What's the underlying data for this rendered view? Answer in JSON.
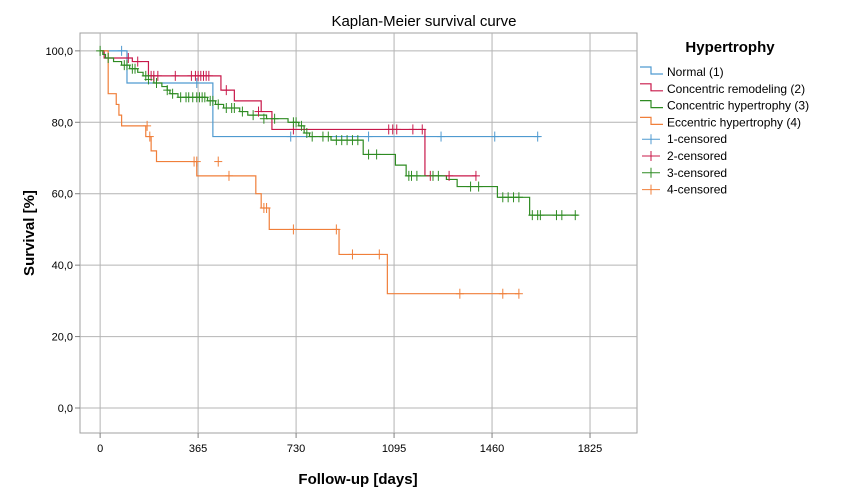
{
  "chart_data": {
    "type": "line",
    "title": "Kaplan-Meier survival curve",
    "xlabel": "Follow-up [days]",
    "ylabel": "Survival [%]",
    "xlim": [
      -75,
      2000
    ],
    "ylim": [
      -7,
      105
    ],
    "xticks": [
      0,
      365,
      730,
      1095,
      1460,
      1825
    ],
    "xtick_labels": [
      "0",
      "365",
      "730",
      "1095",
      "1460",
      "1825"
    ],
    "yticks": [
      0,
      20,
      40,
      60,
      80,
      100
    ],
    "ytick_labels": [
      "0,0",
      "20,0",
      "40,0",
      "60,0",
      "80,0",
      "100,0"
    ],
    "grid": true,
    "legend": {
      "title": "Hypertrophy",
      "placement": "right",
      "entries": [
        {
          "label": "Normal (1)",
          "kind": "line",
          "color": "#4f9ad0"
        },
        {
          "label": "Concentric remodeling (2)",
          "kind": "line",
          "color": "#c8184a"
        },
        {
          "label": "Concentric hypertrophy (3)",
          "kind": "line",
          "color": "#2e8b22"
        },
        {
          "label": "Eccentric hypertrophy (4)",
          "kind": "line",
          "color": "#f07f3a"
        },
        {
          "label": "1-censored",
          "kind": "marker",
          "color": "#4f9ad0"
        },
        {
          "label": "2-censored",
          "kind": "marker",
          "color": "#c8184a"
        },
        {
          "label": "3-censored",
          "kind": "marker",
          "color": "#2e8b22"
        },
        {
          "label": "4-censored",
          "kind": "marker",
          "color": "#f07f3a"
        }
      ]
    },
    "series": [
      {
        "name": "Normal (1)",
        "color": "#4f9ad0",
        "steps": [
          [
            0,
            100
          ],
          [
            100,
            91
          ],
          [
            420,
            76
          ],
          [
            1640,
            76
          ]
        ],
        "censored": [
          [
            80,
            100
          ],
          [
            360,
            91
          ],
          [
            710,
            76
          ],
          [
            1000,
            76
          ],
          [
            1270,
            76
          ],
          [
            1470,
            76
          ],
          [
            1630,
            76
          ]
        ]
      },
      {
        "name": "Concentric remodeling (2)",
        "color": "#c8184a",
        "steps": [
          [
            0,
            100
          ],
          [
            15,
            98
          ],
          [
            120,
            97
          ],
          [
            180,
            93
          ],
          [
            450,
            89
          ],
          [
            500,
            86
          ],
          [
            600,
            83
          ],
          [
            640,
            78
          ],
          [
            1210,
            65
          ],
          [
            1400,
            65
          ]
        ],
        "censored": [
          [
            105,
            98
          ],
          [
            140,
            97
          ],
          [
            190,
            93
          ],
          [
            200,
            93
          ],
          [
            215,
            93
          ],
          [
            280,
            93
          ],
          [
            340,
            93
          ],
          [
            355,
            93
          ],
          [
            365,
            93
          ],
          [
            375,
            93
          ],
          [
            385,
            93
          ],
          [
            395,
            93
          ],
          [
            405,
            93
          ],
          [
            470,
            89
          ],
          [
            590,
            83
          ],
          [
            720,
            78
          ],
          [
            1075,
            78
          ],
          [
            1090,
            78
          ],
          [
            1105,
            78
          ],
          [
            1165,
            78
          ],
          [
            1200,
            78
          ],
          [
            1230,
            65
          ],
          [
            1300,
            65
          ],
          [
            1400,
            65
          ]
        ]
      },
      {
        "name": "Concentric hypertrophy (3)",
        "color": "#2e8b22",
        "steps": [
          [
            0,
            100
          ],
          [
            10,
            99
          ],
          [
            20,
            98
          ],
          [
            50,
            97
          ],
          [
            80,
            96
          ],
          [
            110,
            95
          ],
          [
            140,
            94
          ],
          [
            160,
            93
          ],
          [
            200,
            91
          ],
          [
            230,
            90
          ],
          [
            250,
            89
          ],
          [
            260,
            88
          ],
          [
            290,
            87
          ],
          [
            400,
            86
          ],
          [
            430,
            85
          ],
          [
            460,
            84
          ],
          [
            520,
            83
          ],
          [
            550,
            82
          ],
          [
            620,
            81
          ],
          [
            700,
            80
          ],
          [
            740,
            79
          ],
          [
            760,
            77
          ],
          [
            780,
            76
          ],
          [
            860,
            75
          ],
          [
            980,
            71
          ],
          [
            1100,
            68
          ],
          [
            1140,
            65
          ],
          [
            1290,
            64
          ],
          [
            1330,
            62
          ],
          [
            1480,
            59
          ],
          [
            1600,
            54
          ],
          [
            1780,
            54
          ]
        ],
        "censored": [
          [
            0,
            100
          ],
          [
            30,
            98
          ],
          [
            90,
            96
          ],
          [
            100,
            96
          ],
          [
            120,
            95
          ],
          [
            130,
            95
          ],
          [
            170,
            93
          ],
          [
            180,
            92
          ],
          [
            210,
            91
          ],
          [
            250,
            89
          ],
          [
            270,
            88
          ],
          [
            300,
            87
          ],
          [
            320,
            87
          ],
          [
            330,
            87
          ],
          [
            345,
            87
          ],
          [
            360,
            87
          ],
          [
            370,
            87
          ],
          [
            380,
            87
          ],
          [
            390,
            87
          ],
          [
            410,
            86
          ],
          [
            420,
            86
          ],
          [
            440,
            85
          ],
          [
            470,
            84
          ],
          [
            490,
            84
          ],
          [
            500,
            84
          ],
          [
            530,
            83
          ],
          [
            570,
            82
          ],
          [
            610,
            81
          ],
          [
            650,
            81
          ],
          [
            720,
            80
          ],
          [
            730,
            80
          ],
          [
            750,
            79
          ],
          [
            770,
            77
          ],
          [
            790,
            76
          ],
          [
            830,
            76
          ],
          [
            850,
            76
          ],
          [
            880,
            75
          ],
          [
            900,
            75
          ],
          [
            920,
            75
          ],
          [
            940,
            75
          ],
          [
            960,
            75
          ],
          [
            1000,
            71
          ],
          [
            1030,
            71
          ],
          [
            1150,
            65
          ],
          [
            1160,
            65
          ],
          [
            1180,
            65
          ],
          [
            1240,
            65
          ],
          [
            1260,
            65
          ],
          [
            1380,
            62
          ],
          [
            1410,
            62
          ],
          [
            1500,
            59
          ],
          [
            1520,
            59
          ],
          [
            1540,
            59
          ],
          [
            1560,
            59
          ],
          [
            1610,
            54
          ],
          [
            1630,
            54
          ],
          [
            1640,
            54
          ],
          [
            1700,
            54
          ],
          [
            1720,
            54
          ],
          [
            1770,
            54
          ]
        ]
      },
      {
        "name": "Eccentric hypertrophy (4)",
        "color": "#f07f3a",
        "steps": [
          [
            0,
            100
          ],
          [
            30,
            88
          ],
          [
            60,
            85
          ],
          [
            70,
            82
          ],
          [
            80,
            79
          ],
          [
            170,
            76
          ],
          [
            190,
            72
          ],
          [
            210,
            69
          ],
          [
            360,
            65
          ],
          [
            580,
            60
          ],
          [
            600,
            56
          ],
          [
            630,
            50
          ],
          [
            890,
            43
          ],
          [
            1070,
            32
          ],
          [
            1560,
            32
          ]
        ],
        "censored": [
          [
            175,
            79
          ],
          [
            185,
            76
          ],
          [
            350,
            69
          ],
          [
            360,
            69
          ],
          [
            440,
            69
          ],
          [
            480,
            65
          ],
          [
            610,
            56
          ],
          [
            620,
            56
          ],
          [
            720,
            50
          ],
          [
            880,
            50
          ],
          [
            940,
            43
          ],
          [
            1040,
            43
          ],
          [
            1340,
            32
          ],
          [
            1500,
            32
          ],
          [
            1560,
            32
          ]
        ]
      }
    ]
  }
}
